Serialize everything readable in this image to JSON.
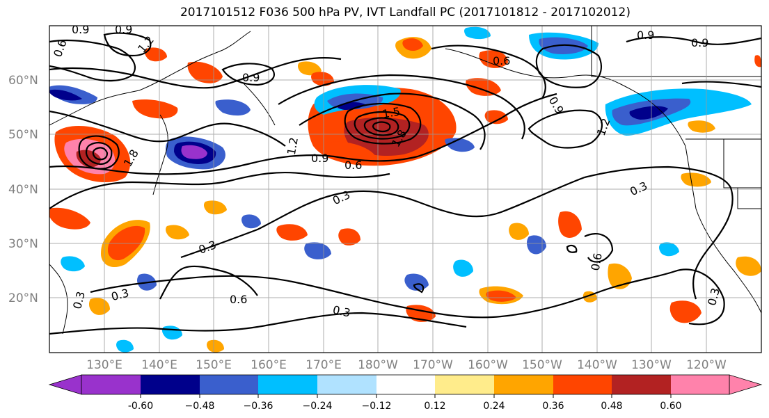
{
  "title": "2017101512 F036 500 hPa PV, IVT Landfall PC (2017101812 - 2017102012)",
  "axes": {
    "lat_labels": [
      "60°N",
      "50°N",
      "40°N",
      "30°N",
      "20°N"
    ],
    "lon_labels": [
      "130°E",
      "140°E",
      "150°E",
      "160°E",
      "170°E",
      "180°W",
      "170°W",
      "160°W",
      "150°W",
      "140°W",
      "130°W",
      "120°W"
    ]
  },
  "colorbar": {
    "ticks": [
      "-0.60",
      "−0.48",
      "−0.36",
      "−0.24",
      "−0.12",
      "0.12",
      "0.24",
      "0.36",
      "0.48",
      "0.60"
    ],
    "colors": [
      "#9932cc",
      "#00008b",
      "#3a5fcd",
      "#00bfff",
      "#b0e2ff",
      "#ffffff",
      "#ffec8b",
      "#ffa500",
      "#ff4500",
      "#b22222",
      "#ff82ab"
    ]
  },
  "contour_labels": [
    "0.9",
    "0.9",
    "1.2",
    "0.6",
    "0.9",
    "0.6",
    "0.9",
    "0.9",
    "1.2",
    "0.9",
    "1.2",
    "0.9",
    "0.6",
    "0.3",
    "0.3",
    "0.3",
    "0.3",
    "0.6",
    "0.3",
    "0.3",
    "0.6",
    "0.3",
    "1.5",
    "1.8",
    "1.8"
  ]
}
